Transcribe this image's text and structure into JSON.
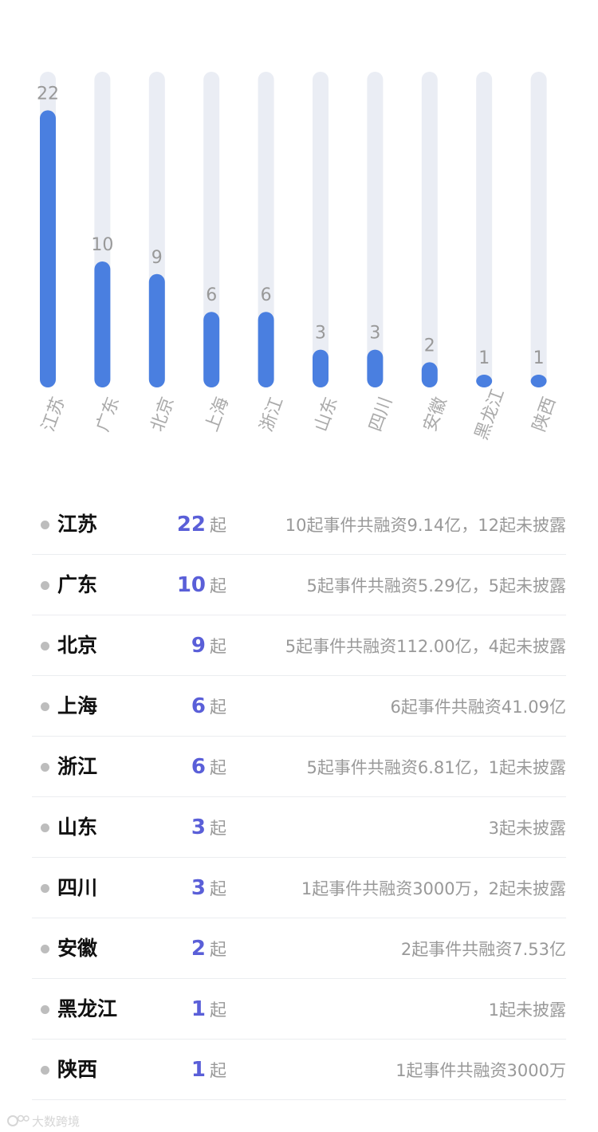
{
  "chart_data": {
    "type": "bar",
    "categories": [
      "江苏",
      "广东",
      "北京",
      "上海",
      "浙江",
      "山东",
      "四川",
      "安徽",
      "黑龙江",
      "陕西"
    ],
    "values": [
      22,
      10,
      9,
      6,
      6,
      3,
      3,
      2,
      1,
      1
    ],
    "ylim": [
      0,
      25
    ],
    "grid": false,
    "colors": {
      "bar": "#4a7fe0",
      "track": "#eaedf4",
      "value_label": "#999999",
      "axis_label": "#aaaaaa"
    }
  },
  "list": [
    {
      "region": "江苏",
      "count": "22",
      "unit": "起",
      "detail": "10起事件共融资9.14亿，12起未披露"
    },
    {
      "region": "广东",
      "count": "10",
      "unit": "起",
      "detail": "5起事件共融资5.29亿，5起未披露"
    },
    {
      "region": "北京",
      "count": "9",
      "unit": "起",
      "detail": "5起事件共融资112.00亿，4起未披露"
    },
    {
      "region": "上海",
      "count": "6",
      "unit": "起",
      "detail": "6起事件共融资41.09亿"
    },
    {
      "region": "浙江",
      "count": "6",
      "unit": "起",
      "detail": "5起事件共融资6.81亿，1起未披露"
    },
    {
      "region": "山东",
      "count": "3",
      "unit": "起",
      "detail": "3起未披露"
    },
    {
      "region": "四川",
      "count": "3",
      "unit": "起",
      "detail": "1起事件共融资3000万，2起未披露"
    },
    {
      "region": "安徽",
      "count": "2",
      "unit": "起",
      "detail": "2起事件共融资7.53亿"
    },
    {
      "region": "黑龙江",
      "count": "1",
      "unit": "起",
      "detail": "1起未披露"
    },
    {
      "region": "陕西",
      "count": "1",
      "unit": "起",
      "detail": "1起事件共融资3000万"
    }
  ],
  "watermark": {
    "text": "大数跨境",
    "icon": "brand-logo-icon"
  }
}
